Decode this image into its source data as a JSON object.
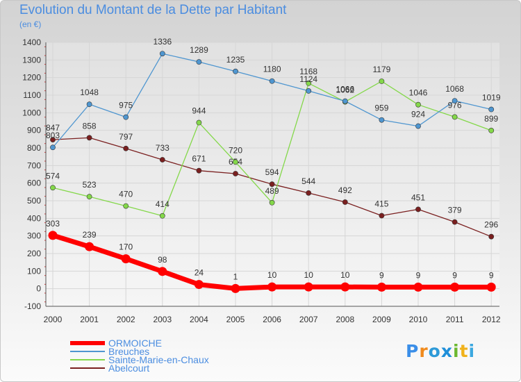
{
  "title": "Evolution du Montant de la Dette par Habitant",
  "subtitle": "(en €)",
  "logo": "Proxiti",
  "chart_data": {
    "type": "line",
    "title": "Evolution du Montant de la Dette par Habitant",
    "ylabel": "(en €)",
    "xlabel": "",
    "ylim": [
      -100,
      1400
    ],
    "yticks": [
      -100,
      0,
      100,
      200,
      300,
      400,
      500,
      600,
      700,
      800,
      900,
      1000,
      1100,
      1200,
      1300,
      1400
    ],
    "categories": [
      "2000",
      "2001",
      "2002",
      "2003",
      "2004",
      "2005",
      "2006",
      "2007",
      "2008",
      "2009",
      "2010",
      "2011",
      "2012"
    ],
    "legend_position": "bottom-left",
    "grid": true,
    "series": [
      {
        "name": "ORMOICHE",
        "color": "#ff0000",
        "values": [
          303,
          239,
          170,
          98,
          24,
          1,
          10,
          10,
          10,
          9,
          9,
          9,
          9
        ],
        "labels": [
          "303",
          "239",
          "170",
          "98",
          "24",
          "1",
          "10",
          "10",
          "10",
          "9",
          "9",
          "9",
          "9"
        ]
      },
      {
        "name": "Breuches",
        "color": "#4f96d0",
        "values": [
          803,
          1048,
          975,
          1336,
          1289,
          1235,
          1180,
          1124,
          1066,
          959,
          924,
          1068,
          1019
        ],
        "labels": [
          "803",
          "1048",
          "975",
          "1336",
          "1289",
          "1235",
          "1180",
          "1124",
          "1066",
          "959",
          "924",
          "1068",
          "1019"
        ]
      },
      {
        "name": "Sainte-Marie-en-Chaux",
        "color": "#84d84a",
        "values": [
          574,
          523,
          470,
          414,
          944,
          720,
          489,
          1168,
          1062,
          1179,
          1046,
          976,
          899
        ],
        "labels": [
          "574",
          "523",
          "470",
          "414",
          "944",
          "720",
          "489",
          "1168",
          "1062",
          "1179",
          "1046",
          "976",
          "899"
        ]
      },
      {
        "name": "Abelcourt",
        "color": "#7a1f1f",
        "values": [
          847,
          858,
          797,
          733,
          671,
          654,
          594,
          544,
          492,
          415,
          451,
          379,
          296
        ],
        "labels": [
          "847",
          "858",
          "797",
          "733",
          "671",
          "654",
          "594",
          "544",
          "492",
          "415",
          "451",
          "379",
          "296"
        ]
      }
    ]
  }
}
